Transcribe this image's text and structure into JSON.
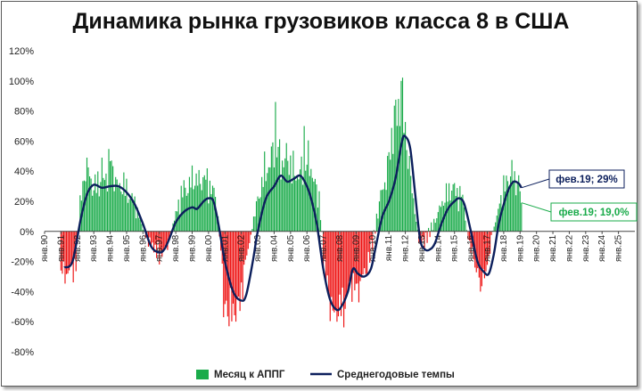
{
  "chart_data": {
    "type": "bar",
    "title": "Динамика рынка грузовиков класса 8 в США",
    "yticks": [
      "120%",
      "100%",
      "80%",
      "60%",
      "40%",
      "20%",
      "0%",
      "-20%",
      "-40%",
      "-60%",
      "-80%"
    ],
    "ylim": [
      -80,
      120
    ],
    "xticks": [
      "янв.90",
      "янв.91",
      "янв.92",
      "янв.93",
      "янв.94",
      "янв.95",
      "янв.96",
      "янв.97",
      "янв.98",
      "янв.99",
      "янв.00",
      "янв.01",
      "янв.02",
      "янв.03",
      "янв.04",
      "янв.05",
      "янв.06",
      "янв.07",
      "янв.08",
      "янв.09",
      "янв.10",
      "янв.11",
      "янв.12",
      "янв.13",
      "янв.14",
      "янв.15",
      "янв.16",
      "янв.17",
      "янв.18",
      "янв.19",
      "янв.20",
      "янв.21",
      "янв.22",
      "янв.23",
      "янв.24",
      "янв.25"
    ],
    "xlim": [
      1990.0,
      2026.0
    ],
    "positive_color": "#1aab4a",
    "negative_color": "#ee1111",
    "line_color": "#0c1f5c",
    "series": [
      {
        "name": "Месяц к АППГ",
        "kind": "bar",
        "monthly_anchors": [
          [
            1991.0,
            -26
          ],
          [
            1991.5,
            -28
          ],
          [
            1991.9,
            -22
          ],
          [
            1992.2,
            22
          ],
          [
            1992.5,
            42
          ],
          [
            1993.0,
            30
          ],
          [
            1993.5,
            32
          ],
          [
            1994.0,
            45
          ],
          [
            1994.5,
            30
          ],
          [
            1995.0,
            28
          ],
          [
            1995.5,
            18
          ],
          [
            1996.0,
            2
          ],
          [
            1996.4,
            -8
          ],
          [
            1996.8,
            -12
          ],
          [
            1997.0,
            -16
          ],
          [
            1997.5,
            -10
          ],
          [
            1998.0,
            12
          ],
          [
            1998.5,
            28
          ],
          [
            1999.0,
            33
          ],
          [
            1999.5,
            35
          ],
          [
            2000.0,
            32
          ],
          [
            2000.4,
            25
          ],
          [
            2000.7,
            -5
          ],
          [
            2001.0,
            -45
          ],
          [
            2001.4,
            -55
          ],
          [
            2001.8,
            -52
          ],
          [
            2002.2,
            -25
          ],
          [
            2002.7,
            5
          ],
          [
            2003.0,
            22
          ],
          [
            2003.5,
            40
          ],
          [
            2004.0,
            55
          ],
          [
            2004.5,
            48
          ],
          [
            2005.0,
            45
          ],
          [
            2005.5,
            35
          ],
          [
            2006.0,
            48
          ],
          [
            2006.4,
            35
          ],
          [
            2006.8,
            20
          ],
          [
            2007.0,
            -20
          ],
          [
            2007.4,
            -48
          ],
          [
            2007.8,
            -57
          ],
          [
            2008.2,
            -52
          ],
          [
            2008.6,
            -35
          ],
          [
            2009.0,
            -38
          ],
          [
            2009.5,
            -30
          ],
          [
            2010.0,
            -8
          ],
          [
            2010.4,
            18
          ],
          [
            2010.8,
            35
          ],
          [
            2011.3,
            70
          ],
          [
            2011.7,
            85
          ],
          [
            2012.0,
            65
          ],
          [
            2012.4,
            30
          ],
          [
            2012.8,
            -5
          ],
          [
            2013.0,
            -10
          ],
          [
            2013.5,
            0
          ],
          [
            2014.0,
            12
          ],
          [
            2014.5,
            25
          ],
          [
            2015.0,
            28
          ],
          [
            2015.5,
            22
          ],
          [
            2015.8,
            -3
          ],
          [
            2016.2,
            -20
          ],
          [
            2016.6,
            -30
          ],
          [
            2017.0,
            -25
          ],
          [
            2017.3,
            0
          ],
          [
            2017.6,
            10
          ],
          [
            2018.0,
            30
          ],
          [
            2018.5,
            38
          ],
          [
            2018.9,
            35
          ],
          [
            2019.1,
            19
          ]
        ],
        "monthly_spikes": [
          [
            2011.75,
            100
          ],
          [
            2011.58,
            88
          ],
          [
            2004.05,
            86
          ],
          [
            2005.8,
            70
          ],
          [
            2000.9,
            -57
          ],
          [
            2007.8,
            -60
          ],
          [
            1993.5,
            49
          ],
          [
            2018.7,
            40
          ],
          [
            2016.6,
            -40
          ]
        ]
      },
      {
        "name": "Среднегодовые темпы",
        "kind": "line",
        "anchors": [
          [
            1991.2,
            -24
          ],
          [
            1991.7,
            -20
          ],
          [
            1992.2,
            8
          ],
          [
            1992.6,
            25
          ],
          [
            1993.0,
            31
          ],
          [
            1993.5,
            29
          ],
          [
            1994.0,
            30
          ],
          [
            1994.5,
            30
          ],
          [
            1995.0,
            26
          ],
          [
            1995.5,
            18
          ],
          [
            1996.0,
            5
          ],
          [
            1996.5,
            -10
          ],
          [
            1997.0,
            -14
          ],
          [
            1997.3,
            -12
          ],
          [
            1997.6,
            -5
          ],
          [
            1998.0,
            6
          ],
          [
            1998.5,
            13
          ],
          [
            1999.0,
            16
          ],
          [
            1999.3,
            15
          ],
          [
            1999.7,
            20
          ],
          [
            2000.0,
            22
          ],
          [
            2000.3,
            20
          ],
          [
            2000.6,
            5
          ],
          [
            2001.0,
            -20
          ],
          [
            2001.5,
            -40
          ],
          [
            2002.0,
            -46
          ],
          [
            2002.3,
            -42
          ],
          [
            2002.7,
            -20
          ],
          [
            2003.0,
            0
          ],
          [
            2003.5,
            22
          ],
          [
            2004.0,
            30
          ],
          [
            2004.4,
            37
          ],
          [
            2004.8,
            33
          ],
          [
            2005.2,
            35
          ],
          [
            2005.6,
            37
          ],
          [
            2006.0,
            30
          ],
          [
            2006.3,
            20
          ],
          [
            2006.6,
            5
          ],
          [
            2007.0,
            -25
          ],
          [
            2007.4,
            -45
          ],
          [
            2007.8,
            -52
          ],
          [
            2008.1,
            -50
          ],
          [
            2008.5,
            -40
          ],
          [
            2008.8,
            -25
          ],
          [
            2009.1,
            -28
          ],
          [
            2009.5,
            -30
          ],
          [
            2009.9,
            -25
          ],
          [
            2010.2,
            -10
          ],
          [
            2010.6,
            10
          ],
          [
            2011.0,
            20
          ],
          [
            2011.4,
            35
          ],
          [
            2011.8,
            60
          ],
          [
            2012.0,
            63
          ],
          [
            2012.3,
            55
          ],
          [
            2012.6,
            25
          ],
          [
            2012.9,
            -5
          ],
          [
            2013.2,
            -12
          ],
          [
            2013.5,
            -12
          ],
          [
            2013.8,
            -8
          ],
          [
            2014.2,
            5
          ],
          [
            2014.6,
            15
          ],
          [
            2015.0,
            20
          ],
          [
            2015.3,
            22
          ],
          [
            2015.6,
            18
          ],
          [
            2016.0,
            0
          ],
          [
            2016.4,
            -20
          ],
          [
            2016.8,
            -27
          ],
          [
            2017.1,
            -28
          ],
          [
            2017.4,
            -15
          ],
          [
            2017.7,
            5
          ],
          [
            2018.0,
            18
          ],
          [
            2018.3,
            28
          ],
          [
            2018.6,
            33
          ],
          [
            2018.9,
            32
          ],
          [
            2019.08,
            29
          ]
        ]
      }
    ],
    "annotations": [
      {
        "text": "фев.19; 29%",
        "color": "#0c1f5c"
      },
      {
        "text": "фев.19; 19,0%",
        "color": "#1aab4a"
      }
    ],
    "legend": {
      "position": "bottom",
      "items": [
        "Месяц к АППГ",
        "Среднегодовые темпы"
      ]
    },
    "grid": false
  }
}
